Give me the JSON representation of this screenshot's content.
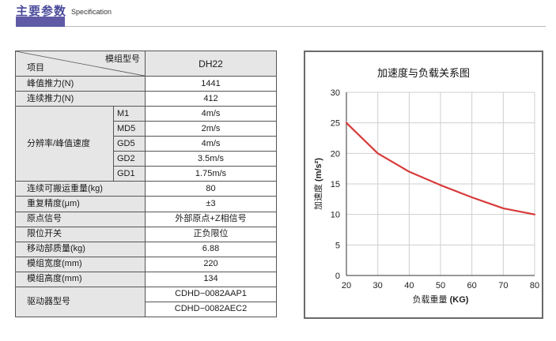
{
  "header": {
    "title": "主要参数",
    "subtitle": "Specification"
  },
  "table": {
    "corner_top": "模组型号",
    "corner_bottom": "项目",
    "model": "DH22",
    "rows": [
      {
        "label": "峰值推力(N)",
        "value": "1441"
      },
      {
        "label": "连续推力(N)",
        "value": "412"
      }
    ],
    "resolution": {
      "label": "分辨率/峰值速度",
      "items": [
        {
          "sub": "M1",
          "value": "4m/s"
        },
        {
          "sub": "MD5",
          "value": "2m/s"
        },
        {
          "sub": "GD5",
          "value": "4m/s"
        },
        {
          "sub": "GD2",
          "value": "3.5m/s"
        },
        {
          "sub": "GD1",
          "value": "1.75m/s"
        }
      ]
    },
    "rows2": [
      {
        "label": "连续可搬运重量(kg)",
        "value": "80"
      },
      {
        "label": "重复精度(μm)",
        "value": "±3"
      },
      {
        "label": "原点信号",
        "value": "外部原点+Z相信号"
      },
      {
        "label": "限位开关",
        "value": "正负限位"
      },
      {
        "label": "移动部质量(kg)",
        "value": "6.88"
      },
      {
        "label": "模组宽度(mm)",
        "value": "220"
      },
      {
        "label": "模组高度(mm)",
        "value": "134"
      }
    ],
    "driver": {
      "label": "驱动器型号",
      "values": [
        "CDHD−0082AAP1",
        "CDHD−0082AEC2"
      ]
    }
  },
  "chart_data": {
    "type": "line",
    "title": "加速度与负载关系图",
    "xlabel": "负载重量",
    "xunit": "(KG)",
    "ylabel": "加速度",
    "yunit": "(m/s²)",
    "xlim": [
      20,
      80
    ],
    "ylim": [
      0,
      30
    ],
    "xticks": [
      20,
      30,
      40,
      50,
      60,
      70,
      80
    ],
    "yticks": [
      0,
      5,
      10,
      15,
      20,
      25,
      30
    ],
    "grid": true,
    "x": [
      20,
      30,
      40,
      50,
      60,
      70,
      80
    ],
    "y": [
      25,
      20,
      17,
      14.8,
      12.8,
      11,
      10
    ],
    "line_color": "#d83a3a"
  }
}
